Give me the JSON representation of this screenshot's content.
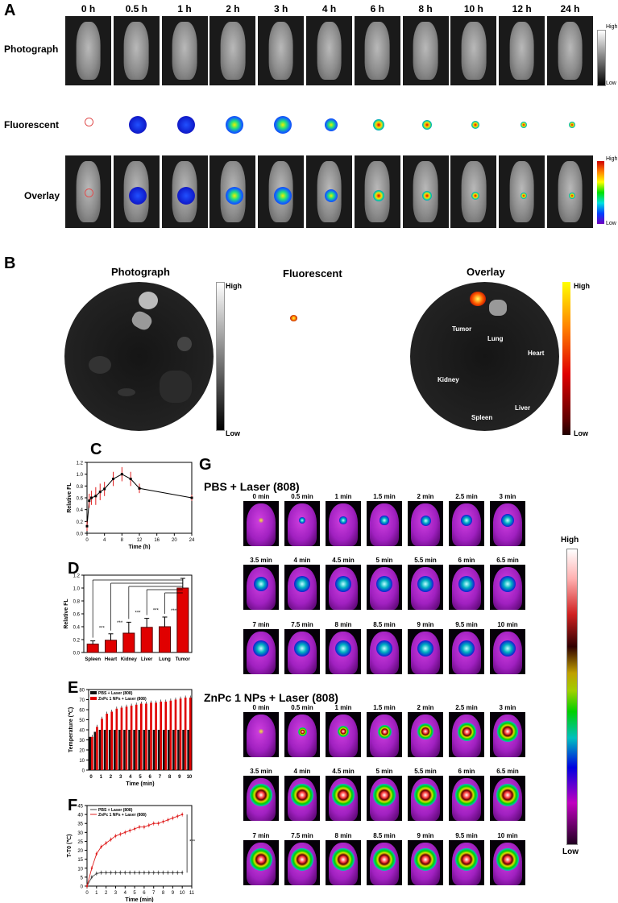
{
  "panel_A": {
    "letter": "A",
    "times": [
      "0 h",
      "0.5 h",
      "1 h",
      "2 h",
      "3 h",
      "4 h",
      "6 h",
      "8 h",
      "10 h",
      "12 h",
      "24 h"
    ],
    "row_labels": [
      "Photograph",
      "Fluorescent",
      "Overlay"
    ],
    "bar_gray": {
      "high": "High",
      "low": "Low"
    },
    "bar_color": {
      "high": "High",
      "low": "Low"
    }
  },
  "panel_B": {
    "letter": "B",
    "titles": [
      "Photograph",
      "Fluorescent",
      "Overlay"
    ],
    "bar_gray": {
      "high": "High",
      "low": "Low"
    },
    "bar_heat": {
      "high": "High",
      "low": "Low"
    },
    "organs": [
      "Tumor",
      "Lung",
      "Heart",
      "Kidney",
      "Liver",
      "Spleen"
    ]
  },
  "panel_G": {
    "letter": "G",
    "group1": "PBS + Laser (808)",
    "group2": "ZnPc 1 NPs + Laser (808)",
    "times": [
      "0 min",
      "0.5 min",
      "1 min",
      "1.5 min",
      "2 min",
      "2.5 min",
      "3 min",
      "3.5 min",
      "4 min",
      "4.5 min",
      "5 min",
      "5.5 min",
      "6 min",
      "6.5 min",
      "7 min",
      "7.5 min",
      "8 min",
      "8.5 min",
      "9 min",
      "9.5 min",
      "10 min"
    ],
    "bar": {
      "high": "High",
      "low": "Low"
    }
  },
  "chart_data": [
    {
      "panel": "C",
      "type": "line",
      "xlabel": "Time (h)",
      "ylabel": "Relative FL",
      "xlim": [
        0,
        24
      ],
      "ylim": [
        0.0,
        1.2
      ],
      "xticks": [
        0,
        4,
        8,
        12,
        16,
        20,
        24
      ],
      "yticks": [
        0.0,
        0.2,
        0.4,
        0.6,
        0.8,
        1.0,
        1.2
      ],
      "x": [
        0,
        0.5,
        1,
        2,
        3,
        4,
        6,
        8,
        10,
        12,
        24
      ],
      "y": [
        0.12,
        0.55,
        0.6,
        0.63,
        0.7,
        0.75,
        0.92,
        1.0,
        0.92,
        0.76,
        0.6
      ],
      "err": [
        0.08,
        0.12,
        0.12,
        0.15,
        0.14,
        0.12,
        0.12,
        0.12,
        0.12,
        0.08,
        0.05
      ]
    },
    {
      "panel": "D",
      "type": "bar",
      "ylabel": "Relative FL",
      "ylim": [
        0.0,
        1.2
      ],
      "yticks": [
        0.0,
        0.2,
        0.4,
        0.6,
        0.8,
        1.0,
        1.2
      ],
      "categories": [
        "Spleen",
        "Heart",
        "Kidney",
        "Liver",
        "Lung",
        "Tumor"
      ],
      "values": [
        0.13,
        0.19,
        0.3,
        0.39,
        0.4,
        1.0
      ],
      "err": [
        0.05,
        0.1,
        0.17,
        0.14,
        0.15,
        0.15
      ],
      "significance": [
        "***",
        "***",
        "***",
        "***",
        "***"
      ]
    },
    {
      "panel": "E",
      "type": "bar",
      "xlabel": "Time (min)",
      "ylabel": "Temperature (℃)",
      "ylim": [
        0,
        80
      ],
      "yticks": [
        0,
        10,
        20,
        30,
        40,
        50,
        60,
        70,
        80
      ],
      "categories": [
        "0",
        "0.5",
        "1",
        "1.5",
        "2",
        "2.5",
        "3",
        "3.5",
        "4",
        "4.5",
        "5",
        "5.5",
        "6",
        "6.5",
        "7",
        "7.5",
        "8",
        "8.5",
        "9",
        "9.5",
        "10"
      ],
      "xtick_labels": [
        "0",
        "1",
        "2",
        "3",
        "4",
        "5",
        "6",
        "7",
        "8",
        "9",
        "10"
      ],
      "series": [
        {
          "name": "PBS + Laser (808)",
          "values": [
            33,
            38,
            40,
            40,
            40,
            40,
            40,
            40,
            40,
            40,
            40,
            40,
            40,
            40,
            40,
            40,
            40,
            40,
            40,
            40,
            40
          ]
        },
        {
          "name": "ZnPc 1 NPs + Laser (808)",
          "values": [
            33,
            43,
            51,
            56,
            58,
            61,
            62,
            63,
            64,
            65,
            66,
            66,
            67,
            67,
            68,
            68,
            69,
            70,
            71,
            72,
            72
          ]
        }
      ]
    },
    {
      "panel": "F",
      "type": "line",
      "xlabel": "Time (min)",
      "ylabel": "T-T0 (℃)",
      "xlim": [
        0,
        11
      ],
      "ylim": [
        0,
        45
      ],
      "xticks": [
        0,
        1,
        2,
        3,
        4,
        5,
        6,
        7,
        8,
        9,
        10,
        11
      ],
      "yticks": [
        0,
        5,
        10,
        15,
        20,
        25,
        30,
        35,
        40,
        45
      ],
      "x": [
        0,
        0.5,
        1,
        1.5,
        2,
        2.5,
        3,
        3.5,
        4,
        4.5,
        5,
        5.5,
        6,
        6.5,
        7,
        7.5,
        8,
        8.5,
        9,
        9.5,
        10
      ],
      "series": [
        {
          "name": "PBS + Laser (808)",
          "values": [
            0,
            5,
            7,
            7.5,
            7.5,
            7.5,
            7.5,
            7.5,
            7.5,
            7.5,
            7.5,
            7.5,
            7.5,
            7.5,
            7.5,
            7.5,
            7.5,
            7.5,
            7.5,
            7.5,
            7.5
          ]
        },
        {
          "name": "ZnPc 1 NPs + Laser (808)",
          "values": [
            0,
            10,
            18,
            22,
            24,
            26,
            28,
            29,
            30,
            31,
            32,
            33,
            33,
            34,
            35,
            35,
            36,
            37,
            38,
            39,
            40
          ]
        }
      ],
      "annotation": "***"
    }
  ]
}
